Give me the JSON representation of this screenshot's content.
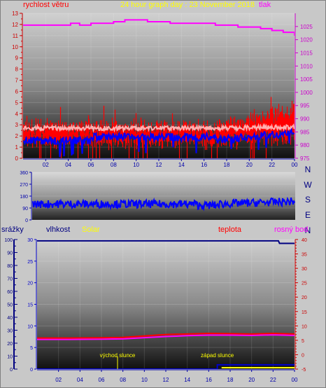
{
  "header": {
    "left_label": "rychlost větru",
    "title": "24 hour graph day : 23 November 2018",
    "right_label": "tlak"
  },
  "colors": {
    "background": "#c8c8c8",
    "wind_title": "#ff0000",
    "title": "#ffff00",
    "pressure": "#ff00ff",
    "wind": "#ff0000",
    "gust_avg": "#ffb0b0",
    "wind_dir": "#0000ff",
    "axis_blue": "#0000cc",
    "rain": "#0000cc",
    "humidity": "#000080",
    "solar": "#ffff00",
    "temperature": "#ff0000",
    "dewpoint": "#ff00ff"
  },
  "time_ticks": [
    "02",
    "04",
    "06",
    "08",
    "10",
    "12",
    "14",
    "16",
    "18",
    "20",
    "22",
    "00"
  ],
  "chart_data": [
    {
      "type": "line",
      "name": "wind-pressure",
      "left_axis": {
        "label": "rychlost větru",
        "ticks": [
          "0",
          "1",
          "2",
          "3",
          "4",
          "5",
          "6",
          "7",
          "8",
          "9",
          "10",
          "11",
          "12",
          "13"
        ],
        "range": [
          0,
          13
        ]
      },
      "right_axis": {
        "label": "tlak",
        "ticks": [
          "975",
          "980",
          "985",
          "990",
          "995",
          "1000",
          "1005",
          "1010",
          "1015",
          "1020",
          "1025"
        ],
        "range": [
          975,
          1030
        ]
      },
      "x_hours_range": [
        0,
        24
      ],
      "pressure": {
        "x": [
          0,
          4.0,
          4.2,
          5.0,
          6.0,
          7.0,
          8.0,
          9.0,
          10.0,
          11.0,
          12.0,
          13.0,
          14.0,
          15.0,
          16.0,
          17.0,
          18.0,
          19.0,
          20.0,
          21.0,
          22.0,
          23.0,
          24.0
        ],
        "y": [
          1025.5,
          1025.5,
          1026.2,
          1025.5,
          1026.2,
          1026.2,
          1026.8,
          1027.5,
          1027.5,
          1026.8,
          1026.8,
          1026.2,
          1026.2,
          1026.2,
          1026.2,
          1025.5,
          1025.5,
          1024.8,
          1024.8,
          1024.2,
          1023.5,
          1022.8,
          1021.5
        ]
      },
      "wind": {
        "description_free": true,
        "base_mean": 2.2,
        "gust_max": 5.5
      },
      "gust_avg": {
        "base_mean": 2.7
      },
      "wind_dir_on_chart": {
        "base_mean": 1.6
      }
    },
    {
      "type": "line",
      "name": "wind-direction",
      "y_axis": {
        "ticks": [
          "0",
          "90",
          "180",
          "270",
          "360"
        ],
        "range": [
          0,
          360
        ]
      },
      "compass": [
        "N",
        "W",
        "S",
        "E",
        "N"
      ],
      "direction_mean": 120
    },
    {
      "type": "line",
      "name": "rain-humidity-solar-temp",
      "left_axis": {
        "label": "srážky",
        "ticks": [
          "0",
          "5",
          "10",
          "15",
          "20",
          "25",
          "30"
        ],
        "range": [
          0,
          30
        ]
      },
      "humidity_axis": {
        "label": "vlhkost",
        "ticks": [
          "0",
          "10",
          "20",
          "30",
          "40",
          "50",
          "60",
          "70",
          "80",
          "90",
          "100"
        ],
        "range": [
          0,
          100
        ]
      },
      "right_axis": {
        "ticks": [
          "-5",
          "0",
          "5",
          "10",
          "15",
          "20",
          "25",
          "30",
          "35",
          "40"
        ],
        "range": [
          -5,
          40
        ]
      },
      "labels": {
        "solar": "Solar",
        "temperature": "teplota",
        "dewpoint": "rosný bod"
      },
      "humidity": {
        "x": [
          0,
          22.5,
          22.6,
          24
        ],
        "y": [
          99,
          99,
          97,
          97
        ]
      },
      "temperature": {
        "x": [
          0,
          3,
          6,
          8,
          10,
          12,
          14,
          16,
          18,
          20,
          22,
          24
        ],
        "y": [
          5.8,
          5.8,
          5.9,
          6.0,
          6.5,
          7.0,
          7.2,
          7.4,
          7.3,
          7.2,
          7.4,
          7.2
        ]
      },
      "dewpoint": {
        "x": [
          0,
          3,
          6,
          8,
          10,
          12,
          14,
          16,
          18,
          20,
          22,
          24
        ],
        "y": [
          5.3,
          5.3,
          5.4,
          5.5,
          5.9,
          6.3,
          6.6,
          6.8,
          6.8,
          6.7,
          6.9,
          6.7
        ]
      },
      "rain_rate": {
        "x": [
          0,
          16.8,
          16.8,
          24
        ],
        "y": [
          0,
          0,
          1.0,
          1.0
        ]
      },
      "annotations": [
        {
          "text": "východ slunce",
          "hour": 7.5
        },
        {
          "text": "západ slunce",
          "hour": 16.8
        }
      ]
    }
  ]
}
